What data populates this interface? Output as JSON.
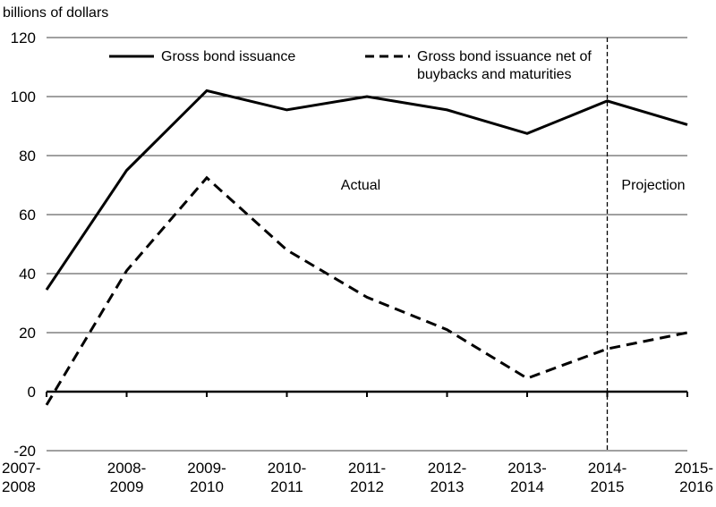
{
  "chart_data": {
    "type": "line",
    "ylabel": "billions of dollars",
    "xlabel": "",
    "categories": [
      [
        "2007-",
        "2008"
      ],
      [
        "2008-",
        "2009"
      ],
      [
        "2009-",
        "2010"
      ],
      [
        "2010-",
        "2011"
      ],
      [
        "2011-",
        "2012"
      ],
      [
        "2012-",
        "2013"
      ],
      [
        "2013-",
        "2014"
      ],
      [
        "2014-",
        "2015"
      ],
      [
        "2015-",
        "2016"
      ]
    ],
    "ylim": [
      -20,
      120
    ],
    "yticks": [
      "-20",
      "0",
      "20",
      "40",
      "60",
      "80",
      "100",
      "120"
    ],
    "ytick_values": [
      -20,
      0,
      20,
      40,
      60,
      80,
      100,
      120
    ],
    "grid": true,
    "legend_position": "top",
    "series": [
      {
        "name": "Gross bond issuance",
        "style": "solid",
        "values": [
          34.5,
          75,
          102,
          95.5,
          100,
          95.5,
          87.5,
          98.5,
          90.5
        ]
      },
      {
        "name": "Gross bond issuance net of buybacks and maturities",
        "name_lines": [
          "Gross bond issuance net of",
          "buybacks and maturities"
        ],
        "style": "dashed",
        "values": [
          -4.5,
          41,
          72.5,
          48,
          32,
          21,
          4.5,
          14.5,
          20
        ]
      }
    ],
    "annotations": {
      "actual": "Actual",
      "projection": "Projection",
      "projection_start_category": 7
    }
  }
}
